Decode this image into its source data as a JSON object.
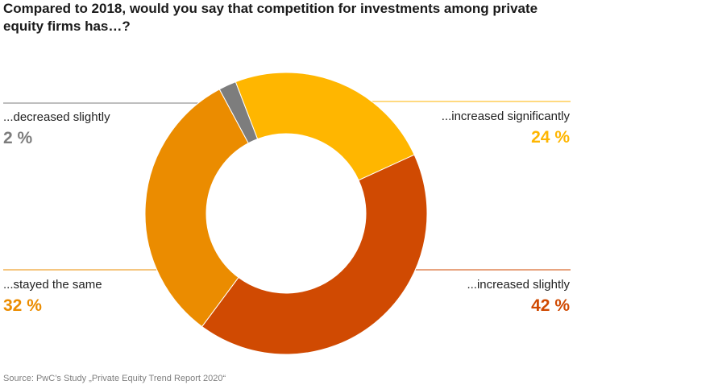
{
  "title": "Compared to 2018, would you say that competition for investments among private equity firms has…?",
  "source": "Source: PwC’s Study „Private Equity Trend Report 2020“",
  "chart_data": {
    "type": "pie",
    "title": "Compared to 2018, would you say that competition for investments among private equity firms has…?",
    "donut": true,
    "start_angle_deg": -21,
    "direction": "clockwise",
    "slices": [
      {
        "label": "...increased significantly",
        "value": 24,
        "value_label": "24 %",
        "color": "#FFB600"
      },
      {
        "label": "...increased slightly",
        "value": 42,
        "value_label": "42 %",
        "color": "#D04A02"
      },
      {
        "label": "...stayed the same",
        "value": 32,
        "value_label": "32 %",
        "color": "#EB8C00"
      },
      {
        "label": "...decreased slightly",
        "value": 2,
        "value_label": "2 %",
        "color": "#7D7D7D"
      }
    ],
    "label_placement": {
      "...increased significantly": "top-right",
      "...increased slightly": "bottom-right",
      "...stayed the same": "bottom-left",
      "...decreased slightly": "top-left"
    }
  }
}
